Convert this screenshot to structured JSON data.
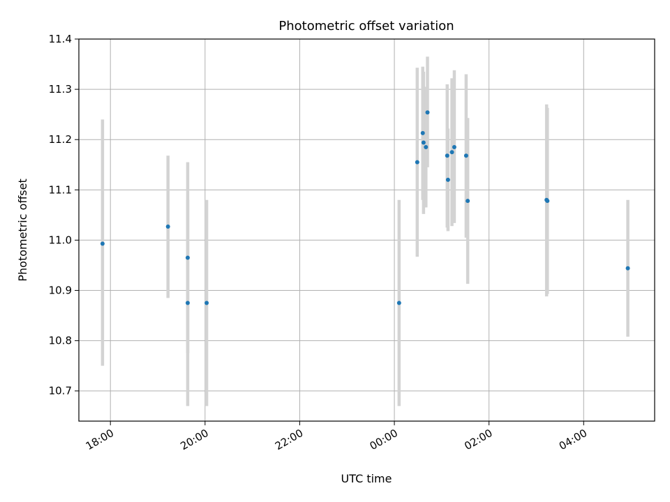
{
  "chart_data": {
    "type": "scatter",
    "title": "Photometric offset variation",
    "xlabel": "UTC time",
    "ylabel": "Photometric offset",
    "x_ticks": [
      "18:00",
      "20:00",
      "22:00",
      "00:00",
      "02:00",
      "04:00"
    ],
    "y_ticks": [
      "10.7",
      "10.8",
      "10.9",
      "11.0",
      "11.1",
      "11.2",
      "11.3",
      "11.4"
    ],
    "xlim": [
      "17:20",
      "05:30"
    ],
    "ylim": [
      10.64,
      11.4
    ],
    "grid": true,
    "colors": {
      "point": "#1f77b4",
      "errorbar": "#d3d3d3",
      "grid": "#b0b0b0"
    },
    "points": [
      {
        "time": "17:50",
        "y": 10.993,
        "ylow": 10.75,
        "yhigh": 11.24
      },
      {
        "time": "19:13",
        "y": 11.027,
        "ylow": 10.885,
        "yhigh": 11.168
      },
      {
        "time": "19:38",
        "y": 10.965,
        "ylow": 10.775,
        "yhigh": 11.155
      },
      {
        "time": "19:38",
        "y": 10.875,
        "ylow": 10.67,
        "yhigh": 11.08
      },
      {
        "time": "20:02",
        "y": 10.875,
        "ylow": 10.67,
        "yhigh": 11.08
      },
      {
        "time": "00:06",
        "y": 10.875,
        "ylow": 10.67,
        "yhigh": 11.08
      },
      {
        "time": "00:29",
        "y": 11.155,
        "ylow": 10.967,
        "yhigh": 11.343
      },
      {
        "time": "00:36",
        "y": 11.213,
        "ylow": 11.08,
        "yhigh": 11.345
      },
      {
        "time": "00:37",
        "y": 11.194,
        "ylow": 11.052,
        "yhigh": 11.335
      },
      {
        "time": "00:40",
        "y": 11.185,
        "ylow": 11.065,
        "yhigh": 11.305
      },
      {
        "time": "00:42",
        "y": 11.254,
        "ylow": 11.145,
        "yhigh": 11.365
      },
      {
        "time": "01:07",
        "y": 11.168,
        "ylow": 11.025,
        "yhigh": 11.31
      },
      {
        "time": "01:08",
        "y": 11.12,
        "ylow": 11.018,
        "yhigh": 11.222
      },
      {
        "time": "01:13",
        "y": 11.175,
        "ylow": 11.028,
        "yhigh": 11.322
      },
      {
        "time": "01:16",
        "y": 11.185,
        "ylow": 11.034,
        "yhigh": 11.338
      },
      {
        "time": "01:31",
        "y": 11.168,
        "ylow": 11.005,
        "yhigh": 11.33
      },
      {
        "time": "01:33",
        "y": 11.078,
        "ylow": 10.913,
        "yhigh": 11.243
      },
      {
        "time": "03:13",
        "y": 11.08,
        "ylow": 10.888,
        "yhigh": 11.27
      },
      {
        "time": "03:14",
        "y": 11.078,
        "ylow": 10.893,
        "yhigh": 11.263
      },
      {
        "time": "04:56",
        "y": 10.944,
        "ylow": 10.808,
        "yhigh": 11.08
      }
    ]
  }
}
